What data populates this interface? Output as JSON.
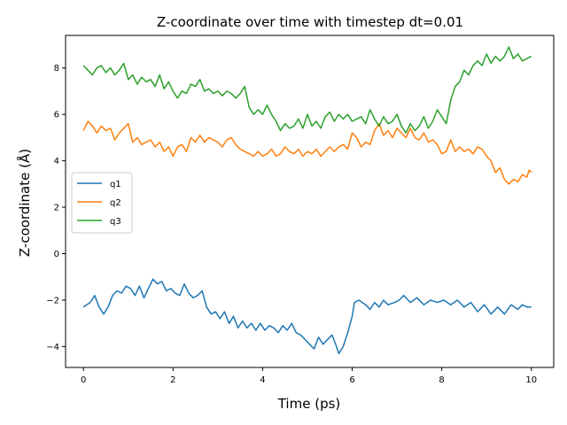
{
  "chart_data": {
    "type": "line",
    "title": "Z-coordinate over time with timestep dt=0.01",
    "xlabel": "Time (ps)",
    "ylabel": "Z-coordinate (Å)",
    "xlim": [
      -0.4,
      10.5
    ],
    "ylim": [
      -4.9,
      9.4
    ],
    "xticks": [
      0,
      2,
      4,
      6,
      8,
      10
    ],
    "yticks": [
      -4,
      -2,
      0,
      2,
      4,
      6,
      8
    ],
    "grid": false,
    "legend": "center-left",
    "series": [
      {
        "name": "q1",
        "color": "#1f77b4",
        "points": [
          [
            0.0,
            -2.3
          ],
          [
            0.15,
            -2.1
          ],
          [
            0.25,
            -1.8
          ],
          [
            0.35,
            -2.3
          ],
          [
            0.45,
            -2.6
          ],
          [
            0.55,
            -2.3
          ],
          [
            0.65,
            -1.8
          ],
          [
            0.75,
            -1.6
          ],
          [
            0.85,
            -1.7
          ],
          [
            0.95,
            -1.4
          ],
          [
            1.05,
            -1.5
          ],
          [
            1.15,
            -1.8
          ],
          [
            1.25,
            -1.4
          ],
          [
            1.35,
            -1.9
          ],
          [
            1.45,
            -1.5
          ],
          [
            1.55,
            -1.1
          ],
          [
            1.65,
            -1.3
          ],
          [
            1.75,
            -1.2
          ],
          [
            1.85,
            -1.6
          ],
          [
            1.95,
            -1.5
          ],
          [
            2.05,
            -1.7
          ],
          [
            2.15,
            -1.8
          ],
          [
            2.25,
            -1.3
          ],
          [
            2.35,
            -1.7
          ],
          [
            2.45,
            -1.9
          ],
          [
            2.55,
            -1.8
          ],
          [
            2.65,
            -1.6
          ],
          [
            2.75,
            -2.3
          ],
          [
            2.85,
            -2.6
          ],
          [
            2.95,
            -2.5
          ],
          [
            3.05,
            -2.8
          ],
          [
            3.15,
            -2.5
          ],
          [
            3.25,
            -3.0
          ],
          [
            3.35,
            -2.7
          ],
          [
            3.45,
            -3.2
          ],
          [
            3.55,
            -2.9
          ],
          [
            3.65,
            -3.2
          ],
          [
            3.75,
            -3.0
          ],
          [
            3.85,
            -3.3
          ],
          [
            3.95,
            -3.0
          ],
          [
            4.05,
            -3.3
          ],
          [
            4.15,
            -3.1
          ],
          [
            4.25,
            -3.2
          ],
          [
            4.35,
            -3.4
          ],
          [
            4.45,
            -3.1
          ],
          [
            4.55,
            -3.3
          ],
          [
            4.65,
            -3.0
          ],
          [
            4.75,
            -3.4
          ],
          [
            4.85,
            -3.5
          ],
          [
            4.95,
            -3.7
          ],
          [
            5.05,
            -3.9
          ],
          [
            5.15,
            -4.1
          ],
          [
            5.25,
            -3.6
          ],
          [
            5.35,
            -3.9
          ],
          [
            5.45,
            -3.7
          ],
          [
            5.55,
            -3.5
          ],
          [
            5.65,
            -4.0
          ],
          [
            5.7,
            -4.3
          ],
          [
            5.8,
            -4.0
          ],
          [
            5.9,
            -3.4
          ],
          [
            6.0,
            -2.7
          ],
          [
            6.05,
            -2.1
          ],
          [
            6.15,
            -2.0
          ],
          [
            6.3,
            -2.2
          ],
          [
            6.4,
            -2.4
          ],
          [
            6.5,
            -2.1
          ],
          [
            6.6,
            -2.3
          ],
          [
            6.7,
            -2.0
          ],
          [
            6.8,
            -2.2
          ],
          [
            6.95,
            -2.1
          ],
          [
            7.05,
            -2.0
          ],
          [
            7.15,
            -1.8
          ],
          [
            7.3,
            -2.1
          ],
          [
            7.45,
            -1.9
          ],
          [
            7.6,
            -2.2
          ],
          [
            7.75,
            -2.0
          ],
          [
            7.9,
            -2.1
          ],
          [
            8.05,
            -2.0
          ],
          [
            8.2,
            -2.2
          ],
          [
            8.35,
            -2.0
          ],
          [
            8.5,
            -2.3
          ],
          [
            8.65,
            -2.1
          ],
          [
            8.8,
            -2.5
          ],
          [
            8.95,
            -2.2
          ],
          [
            9.1,
            -2.6
          ],
          [
            9.25,
            -2.3
          ],
          [
            9.4,
            -2.6
          ],
          [
            9.55,
            -2.2
          ],
          [
            9.7,
            -2.4
          ],
          [
            9.8,
            -2.2
          ],
          [
            9.9,
            -2.3
          ],
          [
            10.0,
            -2.3
          ]
        ]
      },
      {
        "name": "q2",
        "color": "#ff7f0e",
        "points": [
          [
            0.0,
            5.3
          ],
          [
            0.1,
            5.7
          ],
          [
            0.2,
            5.5
          ],
          [
            0.3,
            5.2
          ],
          [
            0.4,
            5.5
          ],
          [
            0.5,
            5.3
          ],
          [
            0.6,
            5.4
          ],
          [
            0.7,
            4.9
          ],
          [
            0.8,
            5.2
          ],
          [
            0.9,
            5.4
          ],
          [
            1.0,
            5.6
          ],
          [
            1.1,
            4.8
          ],
          [
            1.2,
            5.0
          ],
          [
            1.3,
            4.7
          ],
          [
            1.4,
            4.8
          ],
          [
            1.5,
            4.9
          ],
          [
            1.6,
            4.6
          ],
          [
            1.7,
            4.8
          ],
          [
            1.8,
            4.4
          ],
          [
            1.9,
            4.6
          ],
          [
            2.0,
            4.2
          ],
          [
            2.1,
            4.6
          ],
          [
            2.2,
            4.7
          ],
          [
            2.3,
            4.4
          ],
          [
            2.4,
            5.0
          ],
          [
            2.5,
            4.8
          ],
          [
            2.6,
            5.1
          ],
          [
            2.7,
            4.8
          ],
          [
            2.8,
            5.0
          ],
          [
            2.9,
            4.9
          ],
          [
            3.0,
            4.8
          ],
          [
            3.1,
            4.6
          ],
          [
            3.2,
            4.9
          ],
          [
            3.3,
            5.0
          ],
          [
            3.4,
            4.7
          ],
          [
            3.5,
            4.5
          ],
          [
            3.6,
            4.4
          ],
          [
            3.7,
            4.3
          ],
          [
            3.8,
            4.2
          ],
          [
            3.9,
            4.4
          ],
          [
            4.0,
            4.2
          ],
          [
            4.1,
            4.3
          ],
          [
            4.2,
            4.5
          ],
          [
            4.3,
            4.2
          ],
          [
            4.4,
            4.3
          ],
          [
            4.5,
            4.6
          ],
          [
            4.6,
            4.4
          ],
          [
            4.7,
            4.3
          ],
          [
            4.8,
            4.5
          ],
          [
            4.9,
            4.2
          ],
          [
            5.0,
            4.4
          ],
          [
            5.1,
            4.3
          ],
          [
            5.2,
            4.5
          ],
          [
            5.3,
            4.2
          ],
          [
            5.4,
            4.4
          ],
          [
            5.5,
            4.6
          ],
          [
            5.6,
            4.4
          ],
          [
            5.7,
            4.6
          ],
          [
            5.8,
            4.7
          ],
          [
            5.9,
            4.5
          ],
          [
            6.0,
            5.2
          ],
          [
            6.1,
            5.0
          ],
          [
            6.2,
            4.6
          ],
          [
            6.3,
            4.8
          ],
          [
            6.4,
            4.7
          ],
          [
            6.5,
            5.3
          ],
          [
            6.6,
            5.6
          ],
          [
            6.7,
            5.1
          ],
          [
            6.8,
            5.3
          ],
          [
            6.9,
            5.0
          ],
          [
            7.0,
            5.4
          ],
          [
            7.1,
            5.2
          ],
          [
            7.2,
            5.0
          ],
          [
            7.3,
            5.4
          ],
          [
            7.4,
            5.0
          ],
          [
            7.5,
            4.9
          ],
          [
            7.6,
            5.2
          ],
          [
            7.7,
            4.8
          ],
          [
            7.8,
            4.9
          ],
          [
            7.9,
            4.7
          ],
          [
            8.0,
            4.3
          ],
          [
            8.1,
            4.4
          ],
          [
            8.2,
            4.9
          ],
          [
            8.3,
            4.4
          ],
          [
            8.4,
            4.6
          ],
          [
            8.5,
            4.4
          ],
          [
            8.6,
            4.5
          ],
          [
            8.7,
            4.3
          ],
          [
            8.8,
            4.6
          ],
          [
            8.9,
            4.5
          ],
          [
            9.0,
            4.2
          ],
          [
            9.1,
            4.0
          ],
          [
            9.2,
            3.5
          ],
          [
            9.3,
            3.7
          ],
          [
            9.4,
            3.2
          ],
          [
            9.5,
            3.0
          ],
          [
            9.6,
            3.2
          ],
          [
            9.7,
            3.1
          ],
          [
            9.8,
            3.4
          ],
          [
            9.9,
            3.3
          ],
          [
            9.95,
            3.6
          ],
          [
            10.0,
            3.5
          ]
        ]
      },
      {
        "name": "q3",
        "color": "#2ca02c",
        "points": [
          [
            0.0,
            8.1
          ],
          [
            0.1,
            7.9
          ],
          [
            0.2,
            7.7
          ],
          [
            0.3,
            8.0
          ],
          [
            0.4,
            8.1
          ],
          [
            0.5,
            7.8
          ],
          [
            0.6,
            8.0
          ],
          [
            0.7,
            7.7
          ],
          [
            0.8,
            7.9
          ],
          [
            0.9,
            8.2
          ],
          [
            1.0,
            7.5
          ],
          [
            1.1,
            7.7
          ],
          [
            1.2,
            7.3
          ],
          [
            1.3,
            7.6
          ],
          [
            1.4,
            7.4
          ],
          [
            1.5,
            7.5
          ],
          [
            1.6,
            7.2
          ],
          [
            1.7,
            7.7
          ],
          [
            1.8,
            7.1
          ],
          [
            1.9,
            7.4
          ],
          [
            2.0,
            7.0
          ],
          [
            2.1,
            6.7
          ],
          [
            2.2,
            7.0
          ],
          [
            2.3,
            6.9
          ],
          [
            2.4,
            7.3
          ],
          [
            2.5,
            7.2
          ],
          [
            2.6,
            7.5
          ],
          [
            2.7,
            7.0
          ],
          [
            2.8,
            7.1
          ],
          [
            2.9,
            6.9
          ],
          [
            3.0,
            7.0
          ],
          [
            3.1,
            6.8
          ],
          [
            3.2,
            7.0
          ],
          [
            3.3,
            6.9
          ],
          [
            3.4,
            6.7
          ],
          [
            3.5,
            6.9
          ],
          [
            3.6,
            7.2
          ],
          [
            3.7,
            6.3
          ],
          [
            3.8,
            6.0
          ],
          [
            3.9,
            6.2
          ],
          [
            4.0,
            6.0
          ],
          [
            4.1,
            6.4
          ],
          [
            4.2,
            6.0
          ],
          [
            4.3,
            5.7
          ],
          [
            4.4,
            5.3
          ],
          [
            4.5,
            5.6
          ],
          [
            4.6,
            5.4
          ],
          [
            4.7,
            5.5
          ],
          [
            4.8,
            5.8
          ],
          [
            4.9,
            5.4
          ],
          [
            5.0,
            6.0
          ],
          [
            5.1,
            5.5
          ],
          [
            5.2,
            5.7
          ],
          [
            5.3,
            5.4
          ],
          [
            5.4,
            5.9
          ],
          [
            5.5,
            6.1
          ],
          [
            5.6,
            5.7
          ],
          [
            5.7,
            6.0
          ],
          [
            5.8,
            5.8
          ],
          [
            5.9,
            6.0
          ],
          [
            6.0,
            5.7
          ],
          [
            6.1,
            5.8
          ],
          [
            6.2,
            5.9
          ],
          [
            6.3,
            5.6
          ],
          [
            6.4,
            6.2
          ],
          [
            6.5,
            5.8
          ],
          [
            6.6,
            5.5
          ],
          [
            6.7,
            5.9
          ],
          [
            6.8,
            5.6
          ],
          [
            6.9,
            5.7
          ],
          [
            7.0,
            6.0
          ],
          [
            7.1,
            5.5
          ],
          [
            7.2,
            5.2
          ],
          [
            7.3,
            5.6
          ],
          [
            7.4,
            5.3
          ],
          [
            7.5,
            5.5
          ],
          [
            7.6,
            5.9
          ],
          [
            7.7,
            5.4
          ],
          [
            7.8,
            5.7
          ],
          [
            7.9,
            6.2
          ],
          [
            8.0,
            5.9
          ],
          [
            8.1,
            5.6
          ],
          [
            8.2,
            6.6
          ],
          [
            8.3,
            7.2
          ],
          [
            8.4,
            7.4
          ],
          [
            8.5,
            7.9
          ],
          [
            8.6,
            7.7
          ],
          [
            8.7,
            8.1
          ],
          [
            8.8,
            8.3
          ],
          [
            8.9,
            8.1
          ],
          [
            9.0,
            8.6
          ],
          [
            9.1,
            8.2
          ],
          [
            9.2,
            8.5
          ],
          [
            9.3,
            8.3
          ],
          [
            9.4,
            8.5
          ],
          [
            9.5,
            8.9
          ],
          [
            9.6,
            8.4
          ],
          [
            9.7,
            8.6
          ],
          [
            9.8,
            8.3
          ],
          [
            9.9,
            8.4
          ],
          [
            10.0,
            8.5
          ]
        ]
      }
    ]
  }
}
